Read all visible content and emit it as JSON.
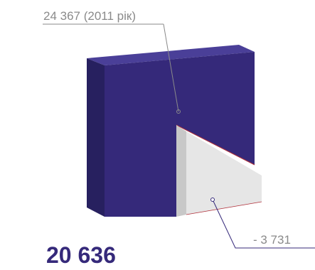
{
  "top_label": "24 367 (2011 рік)",
  "delta_label": "- 3 731",
  "result": "20 636"
}
